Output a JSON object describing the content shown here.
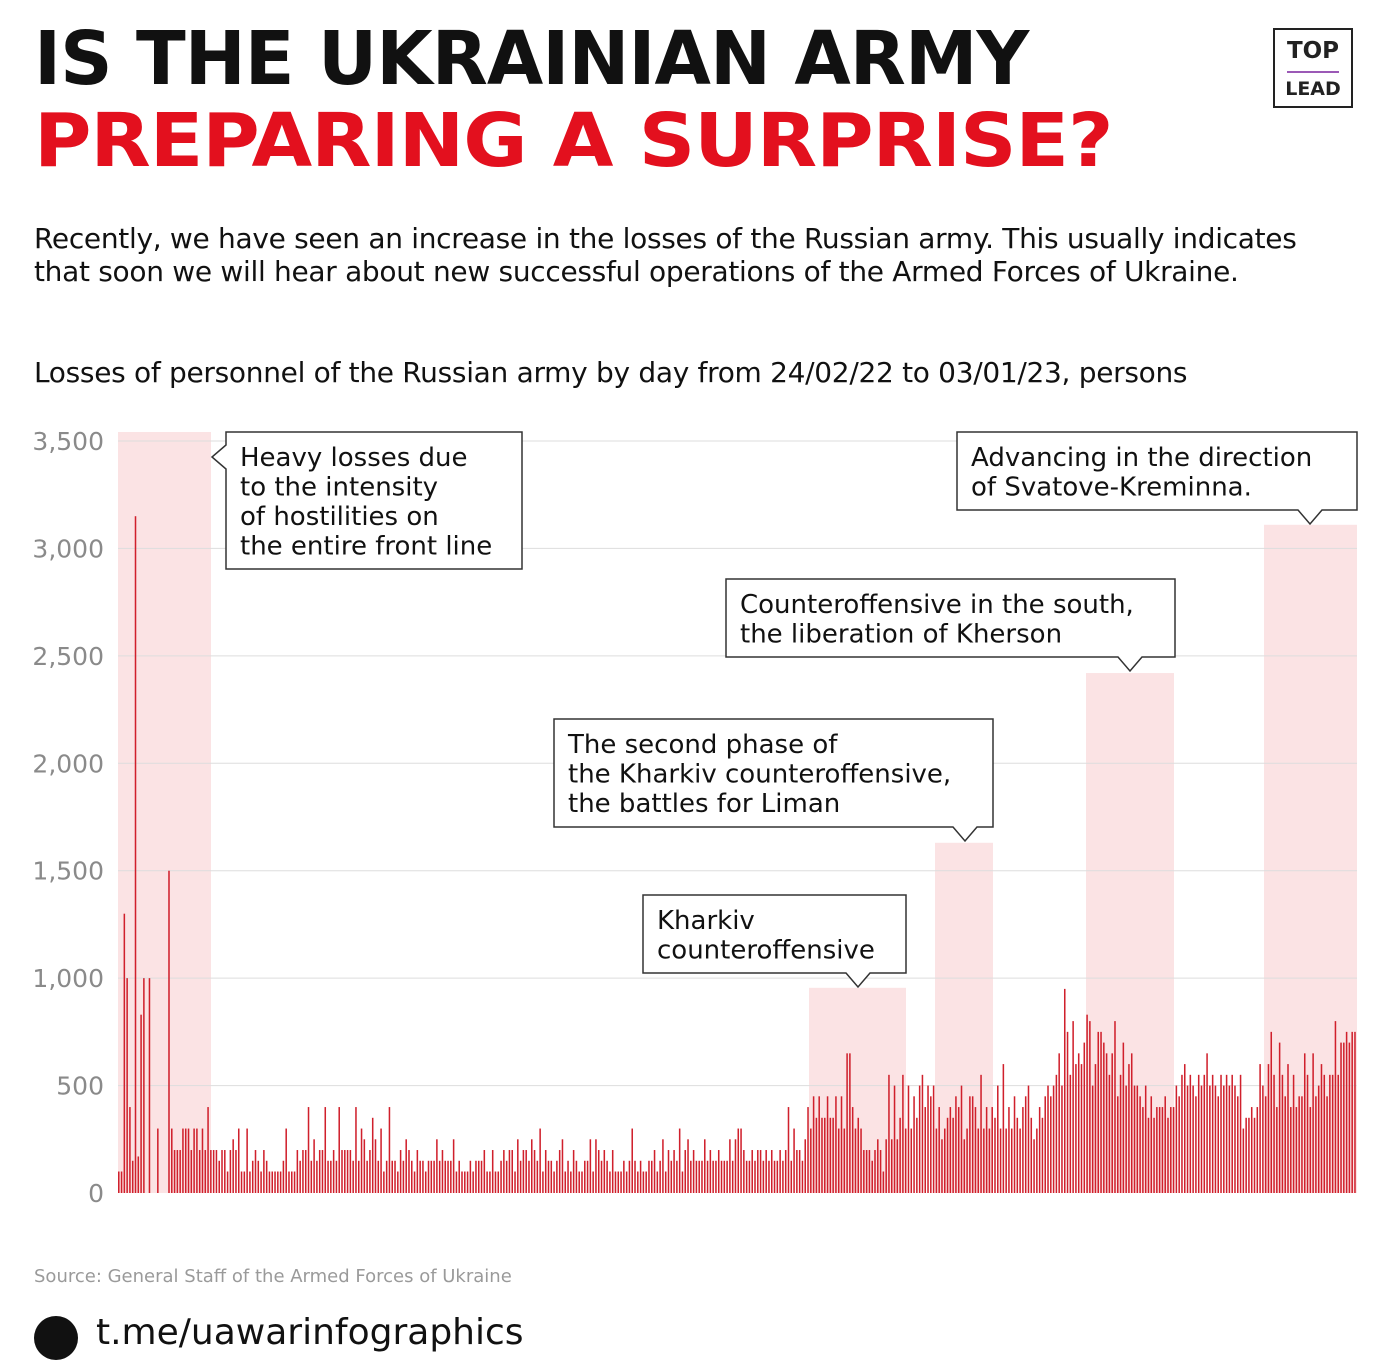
{
  "title": {
    "line1": "IS THE UKRAINIAN ARMY",
    "line2": "PREPARING A SURPRISE?"
  },
  "logo": {
    "line1": "TOP",
    "line2": "LEAD"
  },
  "intro": "Recently, we have seen an increase in the losses of the Russian army. This usually indicates that soon we will hear about new successful operations of the Armed Forces of Ukraine.",
  "chart_subtitle": "Losses of personnel of the Russian army by day from 24/02/22 to 03/01/23, persons",
  "source": "Source: General Staff of the Armed Forces of Ukraine",
  "footer_link": "t.me/uawarinfographics",
  "colors": {
    "accent": "#e3101e",
    "bar": "#d0202c",
    "highlight": "#fbe3e4",
    "grid": "#dddddd"
  },
  "chart_data": {
    "type": "bar",
    "x_start": "2022-02-24",
    "x_end": "2023-01-03",
    "ylim": [
      0,
      3500
    ],
    "yticks": [
      0,
      500,
      1000,
      1500,
      2000,
      2500,
      3000,
      3500
    ],
    "ytick_labels": [
      "0",
      "500",
      "1,000",
      "1,500",
      "2,000",
      "2,500",
      "3,000",
      "3,500"
    ],
    "grid": true,
    "values": [
      100,
      100,
      1300,
      1000,
      400,
      150,
      3150,
      170,
      830,
      1000,
      0,
      1000,
      0,
      0,
      300,
      0,
      0,
      0,
      1500,
      300,
      200,
      200,
      200,
      300,
      300,
      300,
      200,
      300,
      300,
      200,
      300,
      200,
      400,
      200,
      200,
      200,
      150,
      200,
      200,
      100,
      200,
      250,
      200,
      300,
      100,
      100,
      300,
      100,
      150,
      200,
      150,
      100,
      200,
      150,
      100,
      100,
      100,
      100,
      100,
      150,
      300,
      100,
      100,
      100,
      200,
      150,
      200,
      200,
      400,
      150,
      250,
      150,
      200,
      200,
      400,
      150,
      150,
      200,
      150,
      400,
      200,
      200,
      200,
      200,
      150,
      400,
      150,
      300,
      250,
      150,
      200,
      350,
      250,
      150,
      300,
      100,
      150,
      400,
      150,
      150,
      100,
      200,
      150,
      250,
      200,
      150,
      100,
      200,
      150,
      150,
      100,
      150,
      150,
      150,
      250,
      150,
      200,
      150,
      150,
      150,
      250,
      100,
      150,
      100,
      100,
      100,
      150,
      100,
      150,
      150,
      150,
      200,
      100,
      100,
      200,
      100,
      100,
      150,
      200,
      150,
      200,
      200,
      100,
      250,
      150,
      200,
      200,
      150,
      250,
      200,
      150,
      300,
      100,
      200,
      150,
      150,
      100,
      150,
      200,
      250,
      100,
      150,
      100,
      200,
      150,
      100,
      100,
      150,
      150,
      250,
      100,
      250,
      200,
      150,
      200,
      150,
      100,
      200,
      100,
      100,
      100,
      150,
      100,
      150,
      300,
      150,
      100,
      150,
      100,
      100,
      150,
      150,
      200,
      100,
      150,
      250,
      100,
      200,
      150,
      200,
      150,
      300,
      100,
      200,
      250,
      150,
      200,
      150,
      150,
      150,
      250,
      150,
      200,
      150,
      150,
      200,
      150,
      150,
      150,
      250,
      150,
      250,
      300,
      300,
      200,
      150,
      150,
      200,
      150,
      200,
      200,
      150,
      200,
      150,
      200,
      150,
      150,
      200,
      150,
      200,
      400,
      150,
      300,
      200,
      200,
      150,
      250,
      400,
      300,
      450,
      350,
      450,
      350,
      350,
      450,
      350,
      350,
      450,
      300,
      450,
      300,
      650,
      650,
      400,
      300,
      350,
      300,
      200,
      200,
      200,
      150,
      200,
      250,
      200,
      100,
      250,
      550,
      250,
      500,
      250,
      350,
      550,
      300,
      500,
      300,
      450,
      350,
      500,
      550,
      400,
      500,
      450,
      500,
      300,
      400,
      250,
      300,
      350,
      400,
      350,
      450,
      400,
      500,
      250,
      300,
      450,
      450,
      400,
      300,
      550,
      300,
      400,
      300,
      400,
      350,
      500,
      300,
      600,
      300,
      400,
      300,
      450,
      350,
      300,
      400,
      450,
      500,
      350,
      250,
      300,
      400,
      350,
      450,
      500,
      450,
      500,
      550,
      650,
      500,
      950,
      750,
      550,
      800,
      600,
      650,
      600,
      700,
      830,
      800,
      500,
      600,
      750,
      750,
      700,
      650,
      550,
      650,
      800,
      450,
      550,
      700,
      500,
      600,
      650,
      500,
      500,
      450,
      400,
      500,
      350,
      450,
      350,
      400,
      400,
      400,
      450,
      350,
      400,
      400,
      500,
      450,
      550,
      600,
      500,
      550,
      500,
      450,
      550,
      500,
      550,
      650,
      500,
      550,
      500,
      450,
      550,
      500,
      550,
      500,
      550,
      500,
      450,
      550,
      300,
      350,
      350,
      400,
      350,
      400,
      600,
      500,
      450,
      600,
      750,
      550,
      400,
      700,
      550,
      450,
      600,
      400,
      550,
      400,
      450,
      450,
      650,
      550,
      400,
      650,
      450,
      500,
      600,
      550,
      450,
      550,
      550,
      800,
      550,
      700,
      700,
      750,
      700,
      750,
      750
    ]
  },
  "annotations": [
    {
      "lines": [
        "Heavy losses due",
        "to the intensity",
        "of hostilities on",
        "the entire front line"
      ]
    },
    {
      "lines": [
        "Advancing in the direction",
        "of Svatove-Kreminna."
      ]
    },
    {
      "lines": [
        "Counteroffensive in the south,",
        "the liberation of Kherson"
      ]
    },
    {
      "lines": [
        "The second phase of",
        "the Kharkiv counteroffensive,",
        "the battles for Liman"
      ]
    },
    {
      "lines": [
        "Kharkiv",
        "counteroffensive"
      ]
    }
  ]
}
